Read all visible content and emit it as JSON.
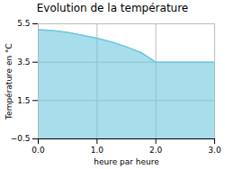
{
  "chart_data": {
    "type": "area",
    "title": "Evolution de la température",
    "x_label": "heure par heure",
    "y_label": "Température en °C",
    "x": [
      0,
      0.25,
      0.5,
      0.75,
      1.0,
      1.25,
      1.5,
      1.75,
      2.0,
      2.5,
      3.0
    ],
    "values": [
      5.2,
      5.15,
      5.05,
      4.9,
      4.75,
      4.55,
      4.3,
      4.0,
      3.5,
      3.5,
      3.5
    ],
    "xlim": [
      0,
      3
    ],
    "ylim": [
      -0.5,
      5.5
    ],
    "xticks": [
      0,
      1,
      2,
      3
    ],
    "yticks": [
      -0.5,
      1.5,
      3.5,
      5.5
    ],
    "color": "#6ec6e0",
    "grid": true
  }
}
